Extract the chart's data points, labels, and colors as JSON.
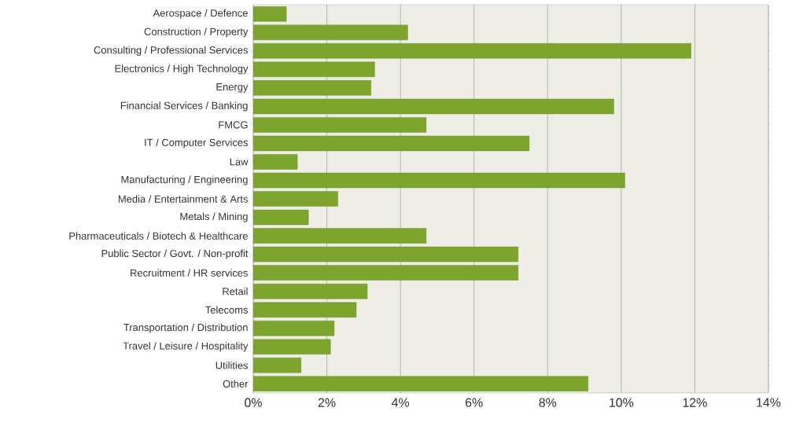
{
  "chart_data": {
    "type": "bar",
    "orientation": "horizontal",
    "categories": [
      "Aerospace / Defence",
      "Construction / Property",
      "Consulting / Professional Services",
      "Electronics / High Technology",
      "Energy",
      "Financial Services / Banking",
      "FMCG",
      "IT / Computer Services",
      "Law",
      "Manufacturing / Engineering",
      "Media / Entertainment & Arts",
      "Metals / Mining",
      "Pharmaceuticals / Biotech & Healthcare",
      "Public Sector / Govt. / Non-profit",
      "Recruitment / HR services",
      "Retail",
      "Telecoms",
      "Transportation / Distribution",
      "Travel / Leisure / Hospitality",
      "Utilities",
      "Other"
    ],
    "values": [
      0.9,
      4.2,
      11.9,
      3.3,
      3.2,
      9.8,
      4.7,
      7.5,
      1.2,
      10.1,
      2.3,
      1.5,
      4.7,
      7.2,
      7.2,
      3.1,
      2.8,
      2.2,
      2.1,
      1.3,
      9.1
    ],
    "color": "#7da42d",
    "xlim": [
      0,
      14
    ],
    "xticks": [
      {
        "value": 0,
        "label": "0%"
      },
      {
        "value": 2,
        "label": "2%"
      },
      {
        "value": 4,
        "label": "4%"
      },
      {
        "value": 6,
        "label": "6%"
      },
      {
        "value": 8,
        "label": "8%"
      },
      {
        "value": 10,
        "label": "10%"
      },
      {
        "value": 12,
        "label": "12%"
      },
      {
        "value": 14,
        "label": "14%"
      }
    ],
    "grid": "x"
  }
}
